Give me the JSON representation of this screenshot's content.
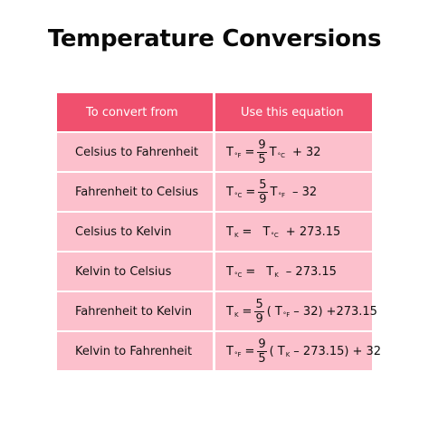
{
  "title": "Temperature Conversions",
  "table": {
    "headers": [
      "To convert from",
      "Use this equation"
    ],
    "rows": [
      {
        "from": "Celsius to Fahrenheit",
        "eq": {
          "lhs": "T",
          "lhs_sub": "°F",
          "eq": "=",
          "num": "9",
          "den": "5",
          "v": "T",
          "v_sub": "°C",
          "rest": "+ 32"
        }
      },
      {
        "from": "Fahrenheit to Celsius",
        "eq": {
          "lhs": "T",
          "lhs_sub": "°C",
          "eq": "=",
          "num": "5",
          "den": "9",
          "v": "T",
          "v_sub": "°F",
          "rest": "– 32"
        }
      },
      {
        "from": "Celsius to Kelvin",
        "eq": {
          "lhs": "T",
          "lhs_sub": "K",
          "eq": "=",
          "v": "T",
          "v_sub": "°C",
          "rest": "+ 273.15"
        }
      },
      {
        "from": "Kelvin to Celsius",
        "eq": {
          "lhs": "T",
          "lhs_sub": "°C",
          "eq": "=",
          "v": "T",
          "v_sub": "K",
          "rest": "– 273.15"
        }
      },
      {
        "from": "Fahrenheit to Kelvin",
        "eq": {
          "lhs": "T",
          "lhs_sub": "K",
          "eq": "=",
          "num": "5",
          "den": "9",
          "open": "(",
          "v": "T",
          "v_sub": "°F",
          "inner": "– 32)",
          "rest": "+273.15"
        }
      },
      {
        "from": "Kelvin to Fahrenheit",
        "eq": {
          "lhs": "T",
          "lhs_sub": "°F",
          "eq": "=",
          "num": "9",
          "den": "5",
          "open": "(",
          "v": "T",
          "v_sub": "K",
          "inner": "– 273.15)",
          "rest": "+ 32"
        }
      }
    ]
  },
  "colors": {
    "header_bg": "#f0506e",
    "row_bg": "#fcc0cc",
    "header_text": "#ffffff"
  }
}
